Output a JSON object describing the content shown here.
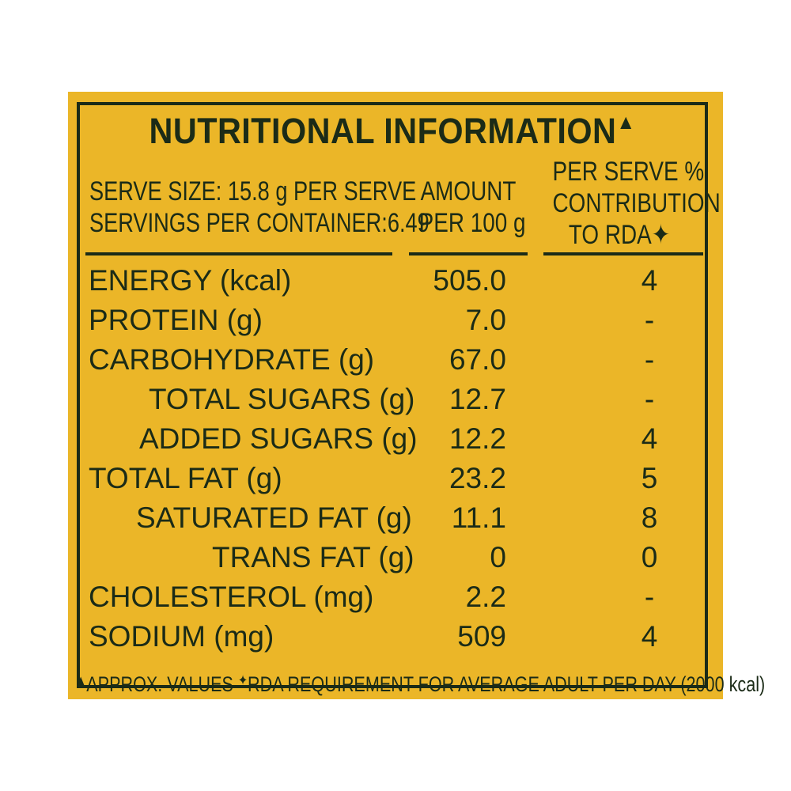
{
  "label": {
    "title": "NUTRITIONAL INFORMATION",
    "title_mark": "▲",
    "serve_size": "SERVE SIZE: 15.8 g PER SERVE",
    "servings_per_container": "SERVINGS PER CONTAINER:6.49",
    "col_amount": [
      "AMOUNT",
      "PER 100 g"
    ],
    "col_rda": [
      "PER SERVE %",
      "CONTRIBUTION",
      "TO RDA✦"
    ],
    "rows": [
      {
        "name": "ENERGY (kcal)",
        "amount": "505.0",
        "rda": "4"
      },
      {
        "name": "PROTEIN (g)",
        "amount": "7.0",
        "rda": "-"
      },
      {
        "name": "CARBOHYDRATE (g)",
        "amount": "67.0",
        "rda": "-"
      },
      {
        "name": "TOTAL SUGARS (g)",
        "amount": "12.7",
        "rda": "-"
      },
      {
        "name": "ADDED SUGARS (g)",
        "amount": "12.2",
        "rda": "4"
      },
      {
        "name": "TOTAL FAT (g)",
        "amount": "23.2",
        "rda": "5"
      },
      {
        "name": "SATURATED FAT (g)",
        "amount": "11.1",
        "rda": "8"
      },
      {
        "name": "TRANS FAT (g)",
        "amount": "0",
        "rda": "0"
      },
      {
        "name": "CHOLESTEROL (mg)",
        "amount": "2.2",
        "rda": "-"
      },
      {
        "name": "SODIUM (mg)",
        "amount": "509",
        "rda": "4"
      }
    ],
    "footnote_mark_1": "▲",
    "footnote_text_1": "APPROX. VALUES ",
    "footnote_mark_2": "✦",
    "footnote_text_2": "RDA REQUIREMENT FOR AVERAGE ADULT PER DAY (2000 kcal)"
  },
  "colors": {
    "background": "#ebb628",
    "ink": "#1b2b17"
  }
}
